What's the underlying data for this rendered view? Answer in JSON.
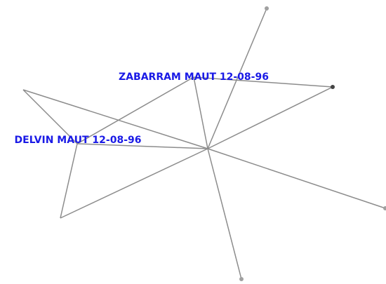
{
  "nodes": [
    {
      "label": "ZABARRAM MAUT 12-08-96"
    },
    {
      "label": "DELVIN MAUT 12-08-96"
    }
  ]
}
